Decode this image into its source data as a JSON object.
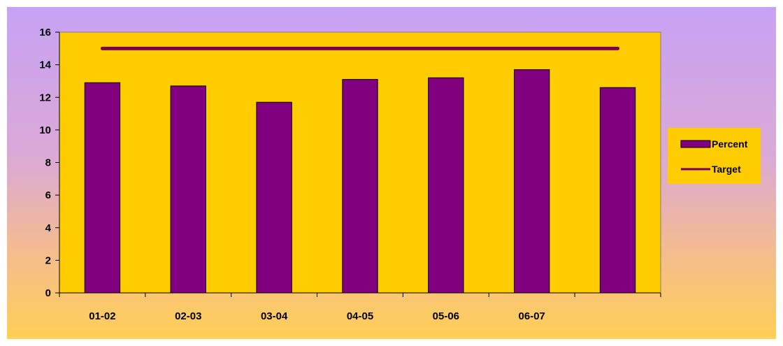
{
  "chart_data": {
    "type": "bar",
    "categories": [
      "01-02",
      "02-03",
      "03-04",
      "04-05",
      "05-06",
      "06-07",
      ""
    ],
    "series": [
      {
        "name": "Percent",
        "kind": "bar",
        "values": [
          12.9,
          12.7,
          11.7,
          13.1,
          13.2,
          13.7,
          12.6
        ]
      },
      {
        "name": "Target",
        "kind": "line",
        "values": [
          15,
          15,
          15,
          15,
          15,
          15,
          15
        ]
      }
    ],
    "ylim": [
      0,
      16
    ],
    "yticks": [
      0,
      2,
      4,
      6,
      8,
      10,
      12,
      14,
      16
    ],
    "legend": "right",
    "grid": false,
    "colors": {
      "plot_background": "#FFCC00",
      "bar": "#800080",
      "target_line": "#7A0057",
      "axis": "#808080"
    }
  }
}
